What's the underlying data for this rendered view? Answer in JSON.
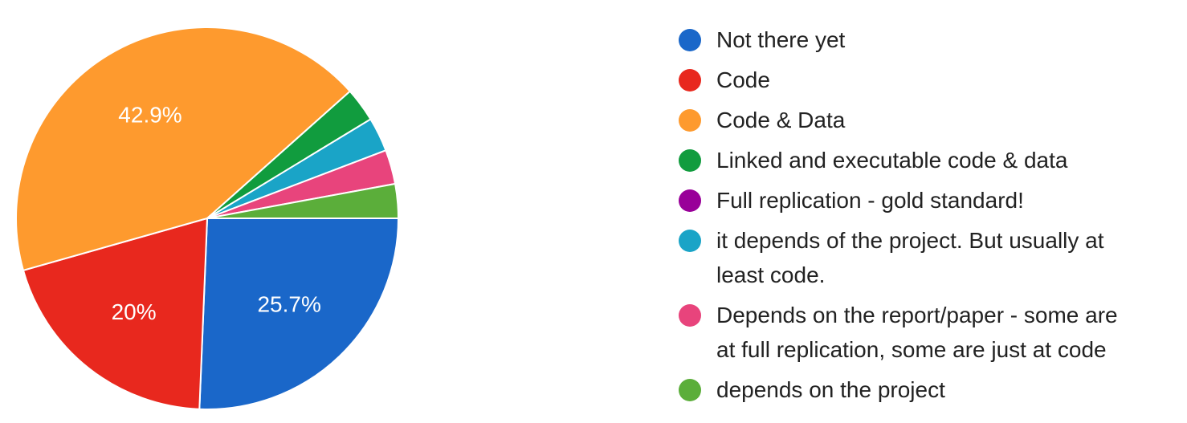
{
  "chart_data": {
    "type": "pie",
    "categories": [
      "Not there yet",
      "Code",
      "Code & Data",
      "Linked and executable code & data",
      "Full replication - gold standard!",
      "it depends of the project. But usually at least code.",
      "Depends on the report/paper - some are at full replication, some are just at code",
      "depends on the project"
    ],
    "values": [
      25.7,
      20,
      42.9,
      2.9,
      0,
      2.9,
      2.9,
      2.9
    ],
    "data_labels": [
      "25.7%",
      "20%",
      "42.9%",
      "",
      "",
      "",
      "",
      ""
    ],
    "colors": [
      "#1A67C9",
      "#E8281E",
      "#FE9A2E",
      "#119C3E",
      "#990099",
      "#1AA4C7",
      "#E8447C",
      "#5BAE3A"
    ],
    "legend_placement": "right"
  },
  "legend": {
    "items": [
      {
        "lines": [
          "Not there yet"
        ],
        "color": "#1A67C9"
      },
      {
        "lines": [
          "Code"
        ],
        "color": "#E8281E"
      },
      {
        "lines": [
          "Code & Data"
        ],
        "color": "#FE9A2E"
      },
      {
        "lines": [
          "Linked and executable code & data"
        ],
        "color": "#119C3E"
      },
      {
        "lines": [
          "Full replication - gold standard!"
        ],
        "color": "#990099"
      },
      {
        "lines": [
          "it depends of the project. But usually at",
          "least code."
        ],
        "color": "#1AA4C7"
      },
      {
        "lines": [
          "Depends on the report/paper - some are",
          "at full replication, some are just at code"
        ],
        "color": "#E8447C"
      },
      {
        "lines": [
          "depends on the project"
        ],
        "color": "#5BAE3A"
      }
    ]
  }
}
